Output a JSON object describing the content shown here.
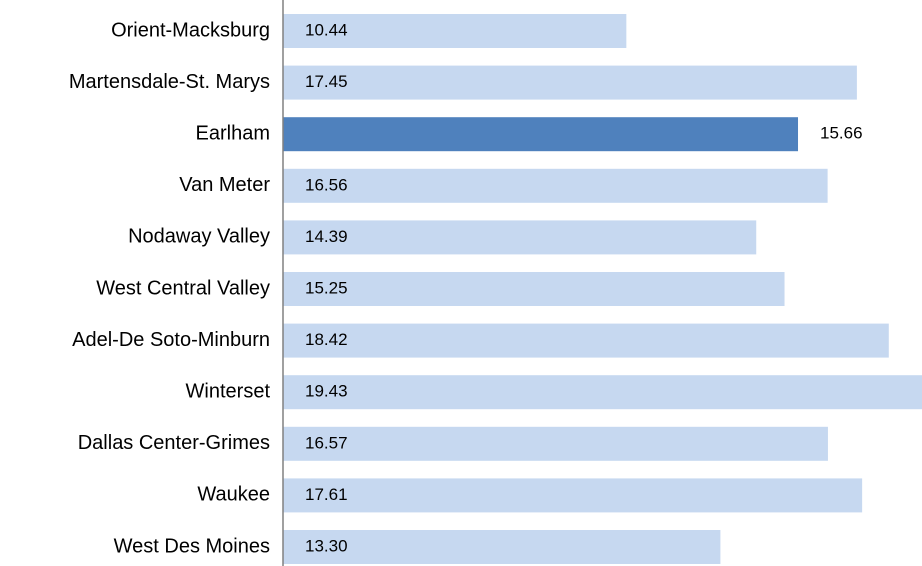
{
  "chart_data": {
    "type": "hbar",
    "categories": [
      "Orient-Macksburg",
      "Martensdale-St. Marys",
      "Earlham",
      "Van Meter",
      "Nodaway Valley",
      "West Central Valley",
      "Adel-De Soto-Minburn",
      "Winterset",
      "Dallas Center-Grimes",
      "Waukee",
      "West Des Moines"
    ],
    "values": [
      10.44,
      17.45,
      15.66,
      16.56,
      14.39,
      15.25,
      18.42,
      19.43,
      16.57,
      17.61,
      13.3
    ],
    "value_labels": [
      "10.44",
      "17.45",
      "15.66",
      "16.56",
      "14.39",
      "15.25",
      "18.42",
      "19.43",
      "16.57",
      "17.61",
      "13.30"
    ],
    "color": "#c6d8f0",
    "highlight": "Earlham",
    "highlight_color": "#4f81bd"
  }
}
